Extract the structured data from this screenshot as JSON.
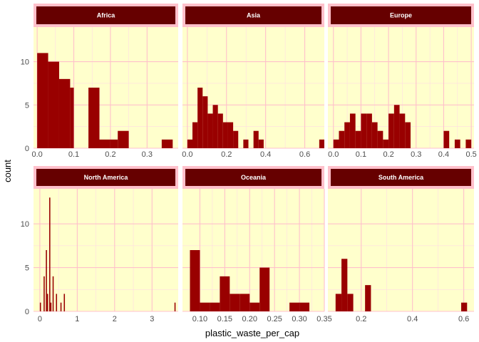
{
  "colors": {
    "panel_bg": "#ffffcc",
    "grid_major": "#ffc0cb",
    "grid_minor": "#ffdce3",
    "bar_fill": "#990000",
    "strip_fill": "#660000",
    "strip_border": "#ffc0cb",
    "strip_text": "#ffffff"
  },
  "chart_data": {
    "type": "bar",
    "subtype": "faceted-histogram",
    "facet_by": "continent",
    "facet_scales": "free_x",
    "xlabel": "plastic_waste_per_cap",
    "ylabel": "count",
    "ylim": [
      0,
      14
    ],
    "y_ticks": [
      "0",
      "5",
      "10"
    ],
    "y_tick_values": [
      0,
      5,
      10
    ],
    "grid": true,
    "facets": [
      {
        "name": "Africa",
        "xlim": [
          -0.01,
          0.385
        ],
        "x_ticks": [
          "0.0",
          "0.1",
          "0.2",
          "0.3"
        ],
        "x_tick_values": [
          0,
          0.1,
          0.2,
          0.3
        ],
        "bins": [
          [
            0.0,
            0.03,
            11
          ],
          [
            0.03,
            0.06,
            10
          ],
          [
            0.06,
            0.09,
            8
          ],
          [
            0.09,
            0.1,
            7
          ],
          [
            0.14,
            0.17,
            7
          ],
          [
            0.17,
            0.2,
            1
          ],
          [
            0.2,
            0.22,
            1
          ],
          [
            0.22,
            0.25,
            2
          ],
          [
            0.34,
            0.37,
            1
          ]
        ]
      },
      {
        "name": "Asia",
        "xlim": [
          -0.025,
          0.7
        ],
        "x_ticks": [
          "0.0",
          "0.2",
          "0.4",
          "0.6"
        ],
        "x_tick_values": [
          0,
          0.2,
          0.4,
          0.6
        ],
        "bins": [
          [
            0.0,
            0.026,
            1
          ],
          [
            0.026,
            0.052,
            3
          ],
          [
            0.052,
            0.078,
            7
          ],
          [
            0.078,
            0.104,
            6
          ],
          [
            0.104,
            0.13,
            4
          ],
          [
            0.13,
            0.156,
            5
          ],
          [
            0.156,
            0.182,
            4
          ],
          [
            0.182,
            0.208,
            3
          ],
          [
            0.208,
            0.234,
            3
          ],
          [
            0.234,
            0.26,
            2
          ],
          [
            0.26,
            0.286,
            0
          ],
          [
            0.286,
            0.312,
            1
          ],
          [
            0.312,
            0.338,
            0
          ],
          [
            0.338,
            0.364,
            2
          ],
          [
            0.364,
            0.39,
            1
          ],
          [
            0.674,
            0.7,
            1
          ]
        ]
      },
      {
        "name": "Europe",
        "xlim": [
          -0.02,
          0.51
        ],
        "x_ticks": [
          "0.0",
          "0.1",
          "0.2",
          "0.3",
          "0.4",
          "0.5"
        ],
        "x_tick_values": [
          0,
          0.1,
          0.2,
          0.3,
          0.4,
          0.5
        ],
        "bins": [
          [
            0.0,
            0.02,
            1
          ],
          [
            0.02,
            0.04,
            2
          ],
          [
            0.04,
            0.06,
            3
          ],
          [
            0.06,
            0.08,
            4
          ],
          [
            0.08,
            0.1,
            2
          ],
          [
            0.1,
            0.12,
            4
          ],
          [
            0.12,
            0.14,
            4
          ],
          [
            0.14,
            0.16,
            3
          ],
          [
            0.16,
            0.18,
            2
          ],
          [
            0.18,
            0.2,
            1
          ],
          [
            0.2,
            0.22,
            4
          ],
          [
            0.22,
            0.24,
            5
          ],
          [
            0.24,
            0.26,
            4
          ],
          [
            0.26,
            0.28,
            3
          ],
          [
            0.4,
            0.42,
            2
          ],
          [
            0.44,
            0.46,
            1
          ],
          [
            0.48,
            0.5,
            1
          ]
        ]
      },
      {
        "name": "North America",
        "xlim": [
          -0.17,
          3.7
        ],
        "x_ticks": [
          "0",
          "1",
          "2",
          "3"
        ],
        "x_tick_values": [
          0,
          1,
          2,
          3
        ],
        "bins": [
          [
            0.0,
            0.03,
            1
          ],
          [
            0.1,
            0.13,
            4
          ],
          [
            0.16,
            0.19,
            7
          ],
          [
            0.19,
            0.22,
            2
          ],
          [
            0.25,
            0.28,
            13
          ],
          [
            0.28,
            0.31,
            1
          ],
          [
            0.34,
            0.37,
            4
          ],
          [
            0.43,
            0.46,
            2
          ],
          [
            0.55,
            0.58,
            1
          ],
          [
            0.64,
            0.67,
            2
          ],
          [
            3.6,
            3.63,
            1
          ]
        ]
      },
      {
        "name": "Oceania",
        "xlim": [
          0.065,
          0.35
        ],
        "x_ticks": [
          "0.10",
          "0.15",
          "0.20",
          "0.25",
          "0.30",
          "0.35"
        ],
        "x_tick_values": [
          0.1,
          0.15,
          0.2,
          0.25,
          0.3,
          0.35
        ],
        "bins": [
          [
            0.08,
            0.1,
            7
          ],
          [
            0.1,
            0.12,
            1
          ],
          [
            0.12,
            0.14,
            1
          ],
          [
            0.14,
            0.16,
            4
          ],
          [
            0.16,
            0.18,
            2
          ],
          [
            0.18,
            0.2,
            2
          ],
          [
            0.2,
            0.22,
            1
          ],
          [
            0.22,
            0.24,
            5
          ],
          [
            0.28,
            0.3,
            1
          ],
          [
            0.3,
            0.32,
            1
          ]
        ]
      },
      {
        "name": "South America",
        "xlim": [
          0.07,
          0.64
        ],
        "x_ticks": [
          "0.2",
          "0.4",
          "0.6"
        ],
        "x_tick_values": [
          0.2,
          0.4,
          0.6
        ],
        "bins": [
          [
            0.1,
            0.123,
            2
          ],
          [
            0.123,
            0.146,
            6
          ],
          [
            0.146,
            0.169,
            2
          ],
          [
            0.215,
            0.238,
            3
          ],
          [
            0.59,
            0.613,
            1
          ]
        ]
      }
    ]
  }
}
